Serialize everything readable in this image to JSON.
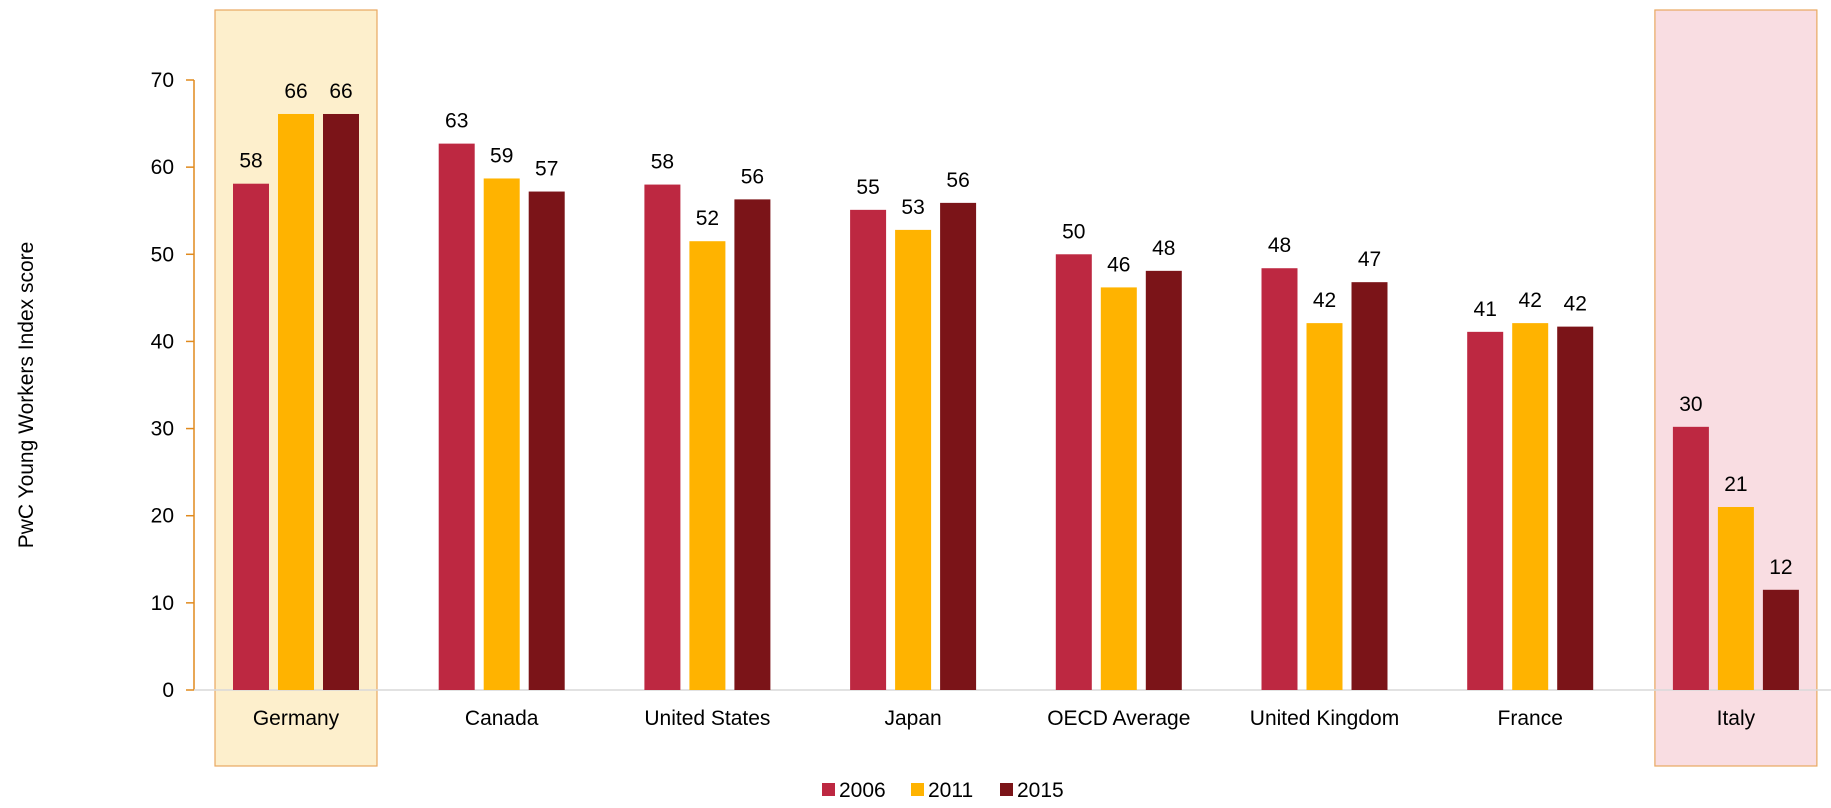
{
  "chart_data": {
    "type": "bar",
    "title": "",
    "xlabel": "",
    "ylabel": "PwC Young Workers Index score",
    "ylim": [
      0,
      70
    ],
    "yticks": [
      0,
      10,
      20,
      30,
      40,
      50,
      60,
      70
    ],
    "grid": false,
    "legend_position": "bottom",
    "categories": [
      "Germany",
      "Canada",
      "United States",
      "Japan",
      "OECD Average",
      "United Kingdom",
      "France",
      "Italy"
    ],
    "highlighted_categories": [
      {
        "category": "Germany",
        "color": "#fdefcc"
      },
      {
        "category": "Italy",
        "color": "#f9dde2"
      }
    ],
    "series": [
      {
        "name": "2006",
        "color": "#bd2841",
        "values": [
          58,
          63,
          58,
          55,
          50,
          48,
          41,
          30
        ]
      },
      {
        "name": "2011",
        "color": "#ffb300",
        "values": [
          66,
          59,
          52,
          53,
          46,
          42,
          42,
          21
        ]
      },
      {
        "name": "2015",
        "color": "#7b1418",
        "values": [
          66,
          57,
          56,
          56,
          48,
          47,
          42,
          12
        ]
      }
    ],
    "bar_heights": [
      [
        58.1,
        62.7,
        58.0,
        55.1,
        50.0,
        48.4,
        41.1,
        30.2
      ],
      [
        66.1,
        58.7,
        51.5,
        52.8,
        46.2,
        42.1,
        42.1,
        21.0
      ],
      [
        66.1,
        57.2,
        56.3,
        55.9,
        48.1,
        46.8,
        41.7,
        11.5
      ]
    ]
  }
}
